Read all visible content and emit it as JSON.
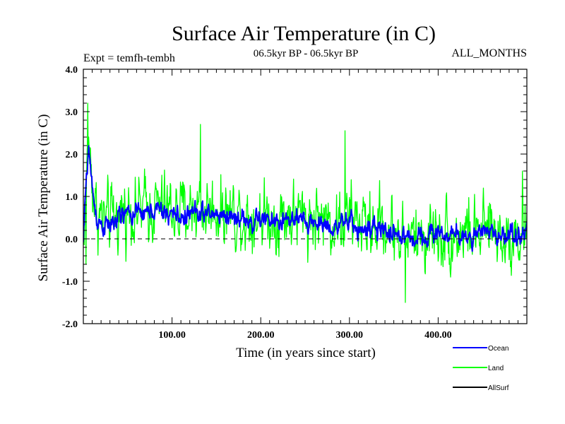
{
  "chart_data": {
    "type": "line",
    "title": "Surface Air Temperature (in C)",
    "subtitle": "06.5kyr BP - 06.5kyr BP",
    "left_annotation": "Expt = temfh-tembh",
    "right_annotation": "ALL_MONTHS",
    "xlabel": "Time (in years since start)",
    "ylabel": "Surface Air Temperature (in C)",
    "xlim": [
      0,
      500
    ],
    "ylim": [
      -2.0,
      4.0
    ],
    "x_ticks": [
      100,
      200,
      300,
      400
    ],
    "x_tick_labels": [
      "100.00",
      "200.00",
      "300.00",
      "400.00"
    ],
    "y_ticks": [
      -2.0,
      -1.0,
      0.0,
      1.0,
      2.0,
      3.0,
      4.0
    ],
    "y_tick_labels": [
      "-2.0",
      "-1.0",
      "0.0",
      "1.0",
      "2.0",
      "3.0",
      "4.0"
    ],
    "zero_line": {
      "y": 0.0,
      "style": "dashed"
    },
    "legend": {
      "position": "bottom-right"
    },
    "series": [
      {
        "name": "Land",
        "color": "#00ff00",
        "note": "noisy annual-mean series; envelope approximated",
        "x": [
          0,
          3,
          6,
          9,
          12,
          15,
          20,
          25,
          30,
          40,
          50,
          60,
          70,
          80,
          90,
          100,
          110,
          120,
          130,
          140,
          150,
          160,
          170,
          180,
          190,
          200,
          210,
          220,
          230,
          240,
          250,
          260,
          270,
          280,
          290,
          300,
          310,
          320,
          330,
          340,
          350,
          360,
          370,
          380,
          390,
          400,
          410,
          420,
          430,
          440,
          450,
          460,
          470,
          480,
          490,
          500
        ],
        "values": [
          0.0,
          1.2,
          2.3,
          1.6,
          1.0,
          0.6,
          0.5,
          0.4,
          0.4,
          0.6,
          0.7,
          0.7,
          0.7,
          0.8,
          0.7,
          0.7,
          0.6,
          0.7,
          0.8,
          0.7,
          0.7,
          0.7,
          0.6,
          0.6,
          0.5,
          0.6,
          0.5,
          0.5,
          0.6,
          0.5,
          0.5,
          0.5,
          0.5,
          0.4,
          0.4,
          0.5,
          0.4,
          0.3,
          0.4,
          0.3,
          0.2,
          0.1,
          0.0,
          0.1,
          0.1,
          0.2,
          0.1,
          0.1,
          0.2,
          0.1,
          0.1,
          0.2,
          0.1,
          0.1,
          0.1,
          0.2
        ],
        "spread": 0.75,
        "peaks": [
          {
            "x": 5,
            "y": 3.2
          },
          {
            "x": 3,
            "y": -0.6
          },
          {
            "x": 132,
            "y": 2.7
          },
          {
            "x": 295,
            "y": 2.55
          },
          {
            "x": 363,
            "y": -1.5
          },
          {
            "x": 495,
            "y": 1.6
          }
        ]
      },
      {
        "name": "Ocean",
        "color": "#0000ff",
        "note": "noisy annual-mean series; envelope approximated",
        "x": [
          0,
          3,
          6,
          9,
          12,
          15,
          20,
          25,
          30,
          40,
          50,
          60,
          70,
          80,
          90,
          100,
          110,
          120,
          130,
          140,
          150,
          160,
          170,
          180,
          190,
          200,
          210,
          220,
          230,
          240,
          250,
          260,
          270,
          280,
          290,
          300,
          310,
          320,
          330,
          340,
          350,
          360,
          370,
          380,
          390,
          400,
          410,
          420,
          430,
          440,
          450,
          460,
          470,
          480,
          490,
          500
        ],
        "values": [
          -0.1,
          1.3,
          2.2,
          1.4,
          0.9,
          0.5,
          0.35,
          0.3,
          0.3,
          0.5,
          0.6,
          0.6,
          0.6,
          0.7,
          0.6,
          0.6,
          0.5,
          0.6,
          0.65,
          0.55,
          0.6,
          0.55,
          0.5,
          0.5,
          0.35,
          0.5,
          0.4,
          0.4,
          0.45,
          0.4,
          0.4,
          0.4,
          0.35,
          0.3,
          0.3,
          0.4,
          0.25,
          0.2,
          0.2,
          0.2,
          0.15,
          0.05,
          0.0,
          0.1,
          0.1,
          0.15,
          0.1,
          0.05,
          0.1,
          0.05,
          0.1,
          0.15,
          0.1,
          0.1,
          0.1,
          0.2
        ],
        "spread": 0.22
      },
      {
        "name": "AllSurf",
        "color": "#000000",
        "values": []
      }
    ]
  }
}
